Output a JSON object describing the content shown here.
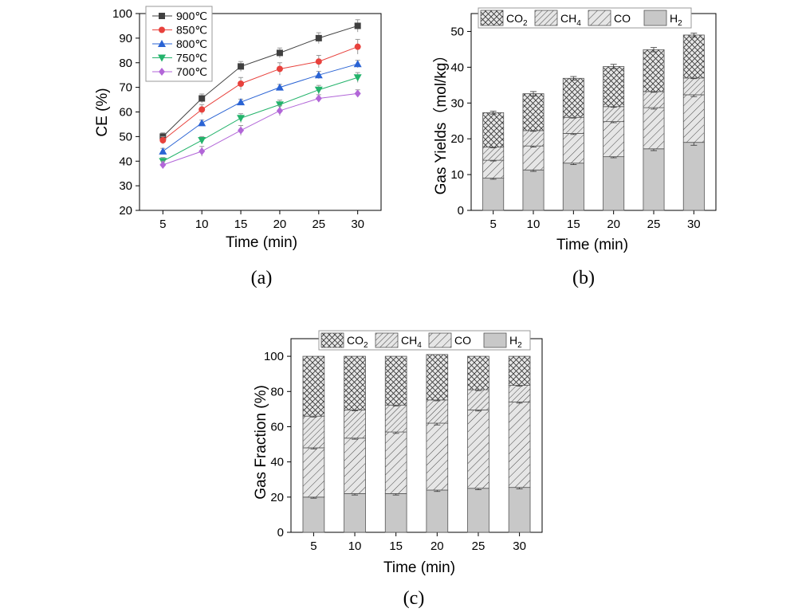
{
  "chart_data": [
    {
      "type": "line",
      "caption": "(a)",
      "title": "",
      "xlabel": "Time (min)",
      "ylabel": "CE (%)",
      "xlim": [
        2,
        33
      ],
      "ylim": [
        20,
        100
      ],
      "x": [
        5,
        10,
        15,
        20,
        25,
        30
      ],
      "x_ticks": [
        "5",
        "10",
        "15",
        "20",
        "25",
        "30"
      ],
      "y_ticks": [
        "20",
        "30",
        "40",
        "50",
        "60",
        "70",
        "80",
        "90",
        "100"
      ],
      "legend_position": "top-left",
      "grid": false,
      "series": [
        {
          "name": "900℃",
          "color": "#404040",
          "marker": "square",
          "values": [
            50,
            65.5,
            78.5,
            84,
            90,
            95
          ],
          "errors": [
            1.5,
            1.8,
            2,
            2,
            2.2,
            2.5
          ]
        },
        {
          "name": "850℃",
          "color": "#e8413c",
          "marker": "circle",
          "values": [
            48.5,
            61,
            71.5,
            77.5,
            80.5,
            86.5
          ],
          "errors": [
            1.5,
            2,
            2.5,
            2.5,
            2.5,
            3
          ]
        },
        {
          "name": "800℃",
          "color": "#2a63d4",
          "marker": "triangle",
          "values": [
            44,
            55.5,
            64,
            70,
            75,
            79.5
          ],
          "errors": [
            1.2,
            1.2,
            1.2,
            1.2,
            1.5,
            1.5
          ]
        },
        {
          "name": "750℃",
          "color": "#23b36b",
          "marker": "triangle-down",
          "values": [
            40,
            48.5,
            57.5,
            63,
            69,
            74
          ],
          "errors": [
            1.5,
            1.5,
            1.8,
            1.8,
            1.8,
            2
          ]
        },
        {
          "name": "700℃",
          "color": "#b266d8",
          "marker": "diamond",
          "values": [
            38.5,
            44,
            52.5,
            60.5,
            65.5,
            67.5
          ],
          "errors": [
            1.5,
            2,
            2,
            2,
            1.5,
            1.5
          ]
        }
      ]
    },
    {
      "type": "bar",
      "stacked": true,
      "caption": "(b)",
      "title": "",
      "xlabel": "Time (min)",
      "ylabel": "Gas Yields（mol/kg）",
      "ylim": [
        0,
        55
      ],
      "categories": [
        "5",
        "10",
        "15",
        "20",
        "25",
        "30"
      ],
      "y_ticks": [
        "0",
        "10",
        "20",
        "30",
        "40",
        "50"
      ],
      "legend_position": "top",
      "grid": false,
      "series": [
        {
          "name": "H",
          "sub": "2",
          "pattern": "solid",
          "values": [
            9,
            11.3,
            13.2,
            15,
            17.2,
            19
          ],
          "errors": [
            0.3,
            0.4,
            0.4,
            0.3,
            0.5,
            0.8
          ]
        },
        {
          "name": "CO",
          "sub": "",
          "pattern": "hatch-r",
          "values": [
            5,
            6.7,
            8.3,
            9.8,
            11.5,
            13.3
          ],
          "errors": [
            0.2,
            0.3,
            0.3,
            0.3,
            0.4,
            0.5
          ]
        },
        {
          "name": "CH",
          "sub": "4",
          "pattern": "hatch-r2",
          "values": [
            3.7,
            4.3,
            4.5,
            4.2,
            4.5,
            4.7
          ],
          "errors": [
            0.2,
            0.2,
            0.2,
            0.2,
            0.2,
            0.2
          ]
        },
        {
          "name": "CO",
          "sub": "2",
          "pattern": "cross",
          "values": [
            9.6,
            10.3,
            10.9,
            11.2,
            11.7,
            12
          ],
          "errors": [
            0.4,
            0.6,
            0.5,
            0.6,
            0.6,
            0.5
          ]
        }
      ]
    },
    {
      "type": "bar",
      "stacked": true,
      "caption": "(c)",
      "title": "",
      "xlabel": "Time (min)",
      "ylabel": "Gas Fraction (%)",
      "ylim": [
        0,
        110
      ],
      "categories": [
        "5",
        "10",
        "15",
        "20",
        "25",
        "30"
      ],
      "y_ticks": [
        "0",
        "20",
        "40",
        "60",
        "80",
        "100"
      ],
      "legend_position": "top",
      "grid": false,
      "series": [
        {
          "name": "H",
          "sub": "2",
          "pattern": "solid",
          "values": [
            20,
            22,
            22,
            24,
            25,
            25.5
          ],
          "errors": [
            0.6,
            0.8,
            0.8,
            0.8,
            0.8,
            0.8
          ]
        },
        {
          "name": "CO",
          "sub": "",
          "pattern": "hatch-r",
          "values": [
            28,
            31.5,
            35,
            38,
            44.5,
            48.5
          ],
          "errors": [
            0.6,
            0.6,
            0.8,
            1,
            0.6,
            0.6
          ]
        },
        {
          "name": "CH",
          "sub": "4",
          "pattern": "hatch-r2",
          "values": [
            18,
            16,
            15.3,
            13.2,
            11.5,
            9.5
          ],
          "errors": [
            0.5,
            0.5,
            0.5,
            0.5,
            0.5,
            0.5
          ]
        },
        {
          "name": "CO",
          "sub": "2",
          "pattern": "cross",
          "values": [
            34,
            30.5,
            27.7,
            25.8,
            19,
            16.5
          ],
          "errors": [
            0,
            0,
            0,
            0,
            0,
            0
          ]
        }
      ]
    }
  ]
}
